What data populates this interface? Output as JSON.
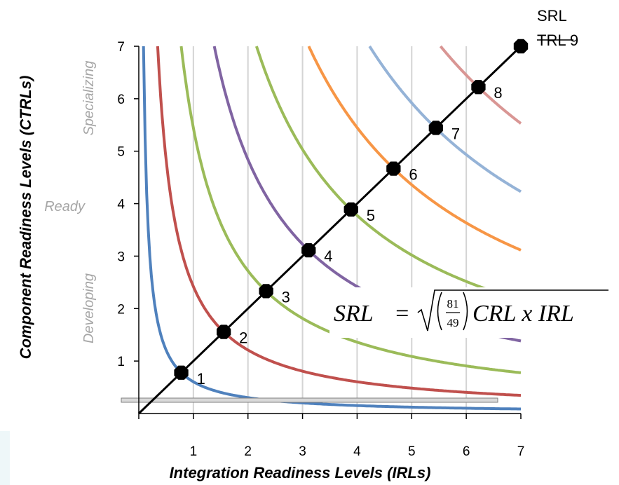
{
  "chart_data": {
    "type": "line",
    "xlabel": "Integration Readiness Levels (IRLs)",
    "ylabel": "Component Readiness Levels (CTRLs)",
    "xlim": [
      0,
      7
    ],
    "ylim": [
      0,
      7
    ],
    "x_ticks": [
      "1",
      "2",
      "3",
      "4",
      "5",
      "6",
      "7"
    ],
    "y_ticks": [
      "1",
      "2",
      "3",
      "4",
      "5",
      "6",
      "7"
    ],
    "grid": "vertical",
    "zone_labels": [
      "Specializing",
      "Ready",
      "Developing"
    ],
    "corner_labels": [
      "SRL",
      "TRL 9"
    ],
    "formula": {
      "lhs": "SRL",
      "equals": "=",
      "numerator": "81",
      "denominator": "49",
      "rhs": "CRL x IRL"
    },
    "diagonal": {
      "points": [
        {
          "x": 0.778,
          "y": 0.778,
          "label": "1"
        },
        {
          "x": 1.556,
          "y": 1.556,
          "label": "2"
        },
        {
          "x": 2.333,
          "y": 2.333,
          "label": "3"
        },
        {
          "x": 3.111,
          "y": 3.111,
          "label": "4"
        },
        {
          "x": 3.889,
          "y": 3.889,
          "label": "5"
        },
        {
          "x": 4.667,
          "y": 4.667,
          "label": "6"
        },
        {
          "x": 5.444,
          "y": 5.444,
          "label": "7"
        },
        {
          "x": 6.222,
          "y": 6.222,
          "label": "8"
        },
        {
          "x": 7.0,
          "y": 7.0,
          "label": ""
        }
      ],
      "color": "#000000"
    },
    "series": [
      {
        "k": 0.605,
        "color": "#4f81bd"
      },
      {
        "k": 2.42,
        "color": "#c0504d"
      },
      {
        "k": 5.44,
        "color": "#9bbb59"
      },
      {
        "k": 9.68,
        "color": "#8064a2"
      },
      {
        "k": 15.1,
        "color": "#9bbb59"
      },
      {
        "k": 21.8,
        "color": "#f79646"
      },
      {
        "k": 29.6,
        "color": "#95b3d7"
      },
      {
        "k": 38.7,
        "color": "#d99694"
      }
    ]
  }
}
